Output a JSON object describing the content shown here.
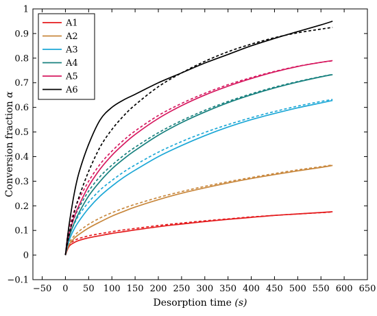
{
  "chart_data": {
    "type": "line",
    "xlabel_text": "Desorption time ",
    "xlabel_unit": "(s)",
    "ylabel_text": "Conversion fraction ",
    "ylabel_symbol": "α",
    "xlim": [
      -70,
      650
    ],
    "ylim": [
      -0.1,
      1.0
    ],
    "xticks": [
      -50,
      0,
      50,
      100,
      150,
      200,
      250,
      300,
      350,
      400,
      450,
      500,
      550,
      600,
      650
    ],
    "yticks": [
      -0.1,
      0,
      0.1,
      0.2,
      0.3,
      0.4,
      0.5,
      0.6,
      0.7,
      0.8,
      0.9,
      1.0
    ],
    "xtick_labels": [
      "−50",
      "0",
      "50",
      "100",
      "150",
      "200",
      "250",
      "300",
      "350",
      "400",
      "450",
      "500",
      "550",
      "600",
      "650"
    ],
    "ytick_labels": [
      "−0.1",
      "0",
      "0.1",
      "0.2",
      "0.3",
      "0.4",
      "0.5",
      "0.6",
      "0.7",
      "0.8",
      "0.9",
      "1"
    ],
    "grid": false,
    "legend_position": "top-left",
    "x": [
      0,
      5,
      10,
      20,
      30,
      50,
      75,
      100,
      125,
      150,
      200,
      250,
      300,
      350,
      400,
      450,
      500,
      550,
      575
    ],
    "series": [
      {
        "name": "A1",
        "color": "#e41a1c",
        "solid": [
          0,
          0.025,
          0.04,
          0.052,
          0.06,
          0.07,
          0.079,
          0.088,
          0.095,
          0.102,
          0.115,
          0.126,
          0.136,
          0.145,
          0.153,
          0.161,
          0.167,
          0.173,
          0.176
        ],
        "dashed": [
          0,
          0.032,
          0.047,
          0.06,
          0.068,
          0.078,
          0.087,
          0.095,
          0.102,
          0.108,
          0.12,
          0.13,
          0.139,
          0.147,
          0.155,
          0.161,
          0.167,
          0.172,
          0.175
        ]
      },
      {
        "name": "A2",
        "color": "#c8873c",
        "solid": [
          0,
          0.03,
          0.048,
          0.07,
          0.085,
          0.11,
          0.135,
          0.158,
          0.177,
          0.195,
          0.225,
          0.251,
          0.273,
          0.293,
          0.311,
          0.327,
          0.342,
          0.356,
          0.364
        ],
        "dashed": [
          0,
          0.04,
          0.057,
          0.08,
          0.098,
          0.125,
          0.151,
          0.172,
          0.19,
          0.206,
          0.234,
          0.258,
          0.279,
          0.298,
          0.315,
          0.331,
          0.346,
          0.359,
          0.366
        ]
      },
      {
        "name": "A3",
        "color": "#1ba7d6",
        "solid": [
          0,
          0.04,
          0.07,
          0.11,
          0.14,
          0.19,
          0.24,
          0.28,
          0.315,
          0.345,
          0.4,
          0.445,
          0.485,
          0.52,
          0.55,
          0.575,
          0.598,
          0.618,
          0.628
        ],
        "dashed": [
          0,
          0.06,
          0.09,
          0.13,
          0.165,
          0.215,
          0.265,
          0.303,
          0.337,
          0.366,
          0.418,
          0.461,
          0.498,
          0.53,
          0.558,
          0.583,
          0.605,
          0.624,
          0.632
        ]
      },
      {
        "name": "A4",
        "color": "#17807e",
        "solid": [
          0,
          0.05,
          0.085,
          0.135,
          0.175,
          0.24,
          0.3,
          0.35,
          0.39,
          0.425,
          0.487,
          0.538,
          0.581,
          0.619,
          0.651,
          0.679,
          0.703,
          0.724,
          0.733
        ],
        "dashed": [
          0,
          0.07,
          0.105,
          0.155,
          0.195,
          0.26,
          0.32,
          0.365,
          0.404,
          0.438,
          0.497,
          0.546,
          0.588,
          0.624,
          0.655,
          0.682,
          0.705,
          0.725,
          0.734
        ]
      },
      {
        "name": "A5",
        "color": "#d6185f",
        "solid": [
          0,
          0.06,
          0.1,
          0.16,
          0.205,
          0.28,
          0.35,
          0.405,
          0.45,
          0.49,
          0.555,
          0.607,
          0.65,
          0.686,
          0.717,
          0.744,
          0.766,
          0.783,
          0.79
        ],
        "dashed": [
          0,
          0.085,
          0.125,
          0.185,
          0.23,
          0.3,
          0.37,
          0.422,
          0.466,
          0.504,
          0.567,
          0.616,
          0.657,
          0.692,
          0.721,
          0.746,
          0.767,
          0.783,
          0.789
        ]
      },
      {
        "name": "A6",
        "color": "#000000",
        "solid": [
          0,
          0.08,
          0.15,
          0.26,
          0.34,
          0.45,
          0.55,
          0.6,
          0.63,
          0.653,
          0.7,
          0.74,
          0.78,
          0.815,
          0.85,
          0.88,
          0.908,
          0.935,
          0.95
        ],
        "dashed": [
          0,
          0.055,
          0.1,
          0.18,
          0.24,
          0.34,
          0.44,
          0.51,
          0.565,
          0.61,
          0.684,
          0.74,
          0.787,
          0.826,
          0.857,
          0.883,
          0.903,
          0.918,
          0.925
        ]
      }
    ]
  }
}
